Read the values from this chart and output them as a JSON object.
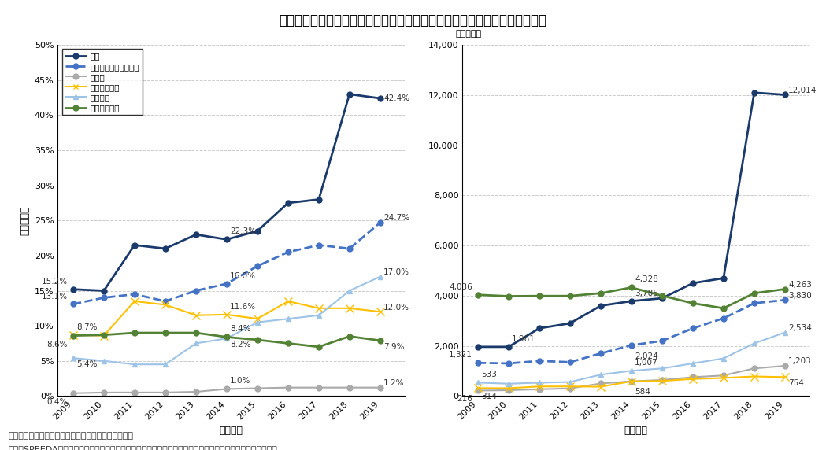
{
  "title": "図４　産業間における無形固定資産の資産内比率およびその規模の年次推移",
  "years": [
    2009,
    2010,
    2011,
    2012,
    2013,
    2014,
    2015,
    2016,
    2017,
    2018,
    2019
  ],
  "left_ylabel": "資産内比率",
  "right_ylabel": "（十億円）",
  "xlabel": "会計年度",
  "note_line1": "注：各産業におけるデータ取得企業は注釈６を参照。",
  "note_line2": "出所：SPEEDA（株式会社ユーザベース）、有価証券報告書、決算情報をもとに医薬産業政策研究所にて作成",
  "series": {
    "seiyaku": {
      "label": "製薬",
      "color": "#1a3a6b",
      "linestyle": "solid",
      "marker": "o",
      "linewidth": 2.0,
      "values_pct": [
        15.2,
        15.0,
        21.5,
        21.0,
        23.0,
        22.3,
        23.5,
        27.5,
        28.0,
        43.0,
        42.4
      ],
      "values_abs": [
        1961,
        1961,
        2700,
        2900,
        3600,
        3785,
        3900,
        4500,
        4700,
        12100,
        12014
      ],
      "labels_pct": {
        "2009": "15.2%",
        "2014": "22.3%",
        "2018": "",
        "2019": "42.4%"
      },
      "labels_abs": {
        "2010": "1,961",
        "2014": "3,785",
        "2019": "12,014"
      }
    },
    "seiyaku_ex": {
      "label": "製薬（武田薬品除く）",
      "color": "#4472c4",
      "linestyle": "dashed",
      "marker": "o",
      "linewidth": 2.0,
      "values_pct": [
        13.1,
        14.0,
        14.5,
        13.5,
        15.0,
        16.0,
        18.5,
        20.5,
        21.5,
        21.0,
        24.7
      ],
      "values_abs": [
        1321,
        1300,
        1400,
        1350,
        1700,
        2024,
        2200,
        2700,
        3100,
        3700,
        3830
      ],
      "labels_pct": {
        "2009": "13.1%",
        "2014": "16.0%",
        "2019": "24.7%"
      },
      "labels_abs": {
        "2009": "1,321",
        "2014": "2,024",
        "2019": "3,830"
      }
    },
    "jidosha": {
      "label": "自動車",
      "color": "#aaaaaa",
      "linestyle": "solid",
      "marker": "o",
      "linewidth": 1.5,
      "values_pct": [
        0.4,
        0.5,
        0.5,
        0.5,
        0.6,
        1.0,
        1.1,
        1.2,
        1.2,
        1.2,
        1.2
      ],
      "values_abs": [
        216,
        230,
        270,
        300,
        500,
        584,
        640,
        750,
        820,
        1100,
        1203
      ],
      "labels_pct": {
        "2009": "0.4%",
        "2014": "1.0%",
        "2019": "1.2%"
      },
      "labels_abs": {
        "2009": "216",
        "2014": "584",
        "2019": "1,203"
      }
    },
    "seimitsu": {
      "label": "精密機械器具",
      "color": "#ffc000",
      "linestyle": "solid",
      "marker": "x",
      "linewidth": 1.5,
      "values_pct": [
        8.7,
        8.6,
        13.5,
        13.0,
        11.5,
        11.6,
        11.0,
        13.5,
        12.5,
        12.5,
        12.0
      ],
      "values_abs": [
        314,
        310,
        380,
        380,
        370,
        584,
        600,
        680,
        720,
        780,
        754
      ],
      "labels_pct": {
        "2009": "8.7%",
        "2014": "11.6%",
        "2019": "12.0%"
      },
      "labels_abs": {
        "2009": "314",
        "2014": "584",
        "2019": "754"
      }
    },
    "sogo_kagaku": {
      "label": "総合化学",
      "color": "#9dc3e6",
      "linestyle": "solid",
      "marker": "^",
      "linewidth": 1.5,
      "values_pct": [
        5.4,
        5.0,
        4.5,
        4.5,
        7.5,
        8.2,
        10.5,
        11.0,
        11.5,
        15.0,
        17.0
      ],
      "values_abs": [
        533,
        490,
        530,
        560,
        850,
        1007,
        1100,
        1300,
        1500,
        2100,
        2534
      ],
      "labels_pct": {
        "2009": "5.4%",
        "2014": "8.2%",
        "2019": "17.0%"
      },
      "labels_abs": {
        "2009": "533",
        "2014": "1,007",
        "2019": "2,534"
      }
    },
    "denki": {
      "label": "電気機械器具",
      "color": "#548235",
      "linestyle": "solid",
      "marker": "o",
      "linewidth": 2.0,
      "values_pct": [
        8.6,
        8.7,
        9.0,
        9.0,
        9.0,
        8.4,
        8.0,
        7.5,
        7.0,
        8.5,
        7.9
      ],
      "values_abs": [
        4036,
        3980,
        3990,
        3990,
        4100,
        4328,
        4000,
        3700,
        3500,
        4100,
        4263
      ],
      "labels_pct": {
        "2009": "8.6%",
        "2014": "8.4%",
        "2019": "7.9%"
      },
      "labels_abs": {
        "2009": "4,036",
        "2014": "4,328",
        "2019": "4,263"
      }
    }
  },
  "left_ylim": [
    0,
    50
  ],
  "right_ylim": [
    0,
    14000
  ],
  "left_yticks": [
    0,
    5,
    10,
    15,
    20,
    25,
    30,
    35,
    40,
    45,
    50
  ],
  "right_yticks": [
    0,
    2000,
    4000,
    6000,
    8000,
    10000,
    12000,
    14000
  ],
  "background_color": "#ffffff",
  "grid_color": "#cccccc",
  "grid_linestyle": "dashed"
}
